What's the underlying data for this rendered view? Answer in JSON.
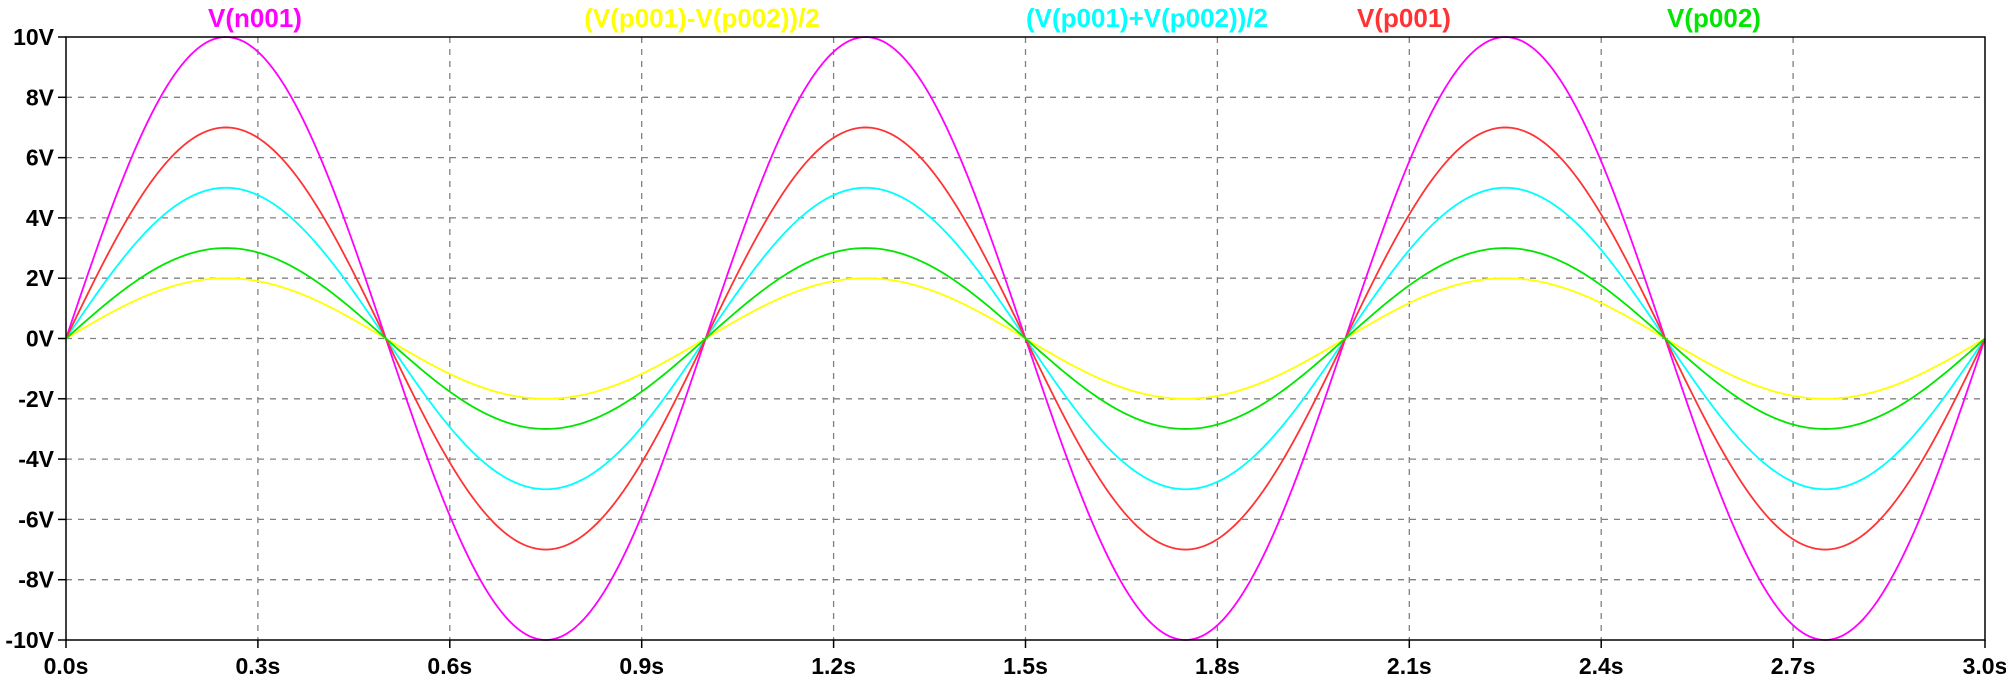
{
  "chart_data": {
    "type": "line",
    "title": "",
    "xlabel": "",
    "ylabel": "",
    "xlim": [
      0,
      3.0
    ],
    "ylim": [
      -10,
      10
    ],
    "grid": true,
    "x_tick_labels": [
      "0.0s",
      "0.3s",
      "0.6s",
      "0.9s",
      "1.2s",
      "1.5s",
      "1.8s",
      "2.1s",
      "2.4s",
      "2.7s",
      "3.0s"
    ],
    "y_tick_labels": [
      "10V",
      "8V",
      "6V",
      "4V",
      "2V",
      "0V",
      "-2V",
      "-4V",
      "-6V",
      "-8V",
      "-10V"
    ],
    "x_ticks": [
      0,
      0.3,
      0.6,
      0.9,
      1.2,
      1.5,
      1.8,
      2.1,
      2.4,
      2.7,
      3.0
    ],
    "y_ticks": [
      10,
      8,
      6,
      4,
      2,
      0,
      -2,
      -4,
      -6,
      -8,
      -10
    ],
    "x": [
      0,
      0.125,
      0.25,
      0.375,
      0.5,
      0.625,
      0.75,
      0.875,
      1.0,
      1.125,
      1.25,
      1.375,
      1.5,
      1.625,
      1.75,
      1.875,
      2.0,
      2.125,
      2.25,
      2.375,
      2.5,
      2.625,
      2.75,
      2.875,
      3.0
    ],
    "series": [
      {
        "name": "V(n001)",
        "color": "#ff00ff",
        "values": [
          0,
          7.07,
          10,
          7.07,
          0,
          -7.07,
          -10,
          -7.07,
          0,
          7.07,
          10,
          7.07,
          0,
          -7.07,
          -10,
          -7.07,
          0,
          7.07,
          10,
          7.07,
          0,
          -7.07,
          -10,
          -7.07,
          0
        ]
      },
      {
        "name": "(V(p001)-V(p002))/2",
        "color": "#ffff00",
        "values": [
          0,
          1.41,
          2,
          1.41,
          0,
          -1.41,
          -2,
          -1.41,
          0,
          1.41,
          2,
          1.41,
          0,
          -1.41,
          -2,
          -1.41,
          0,
          1.41,
          2,
          1.41,
          0,
          -1.41,
          -2,
          -1.41,
          0
        ]
      },
      {
        "name": "(V(p001)+V(p002))/2",
        "color": "#00ffff",
        "values": [
          0,
          3.54,
          5,
          3.54,
          0,
          -3.54,
          -5,
          -3.54,
          0,
          3.54,
          5,
          3.54,
          0,
          -3.54,
          -5,
          -3.54,
          0,
          3.54,
          5,
          3.54,
          0,
          -3.54,
          -5,
          -3.54,
          0
        ]
      },
      {
        "name": "V(p001)",
        "color": "#ff3333",
        "values": [
          0,
          4.95,
          7,
          4.95,
          0,
          -4.95,
          -7,
          -4.95,
          0,
          4.95,
          7,
          4.95,
          0,
          -4.95,
          -7,
          -4.95,
          0,
          4.95,
          7,
          4.95,
          0,
          -4.95,
          -7,
          -4.95,
          0
        ]
      },
      {
        "name": "V(p002)",
        "color": "#00e600",
        "values": [
          0,
          2.12,
          3,
          2.12,
          0,
          -2.12,
          -3,
          -2.12,
          0,
          2.12,
          3,
          2.12,
          0,
          -2.12,
          -3,
          -2.12,
          0,
          2.12,
          3,
          2.12,
          0,
          -2.12,
          -3,
          -2.12,
          0
        ]
      }
    ],
    "legend_placement": "top"
  }
}
